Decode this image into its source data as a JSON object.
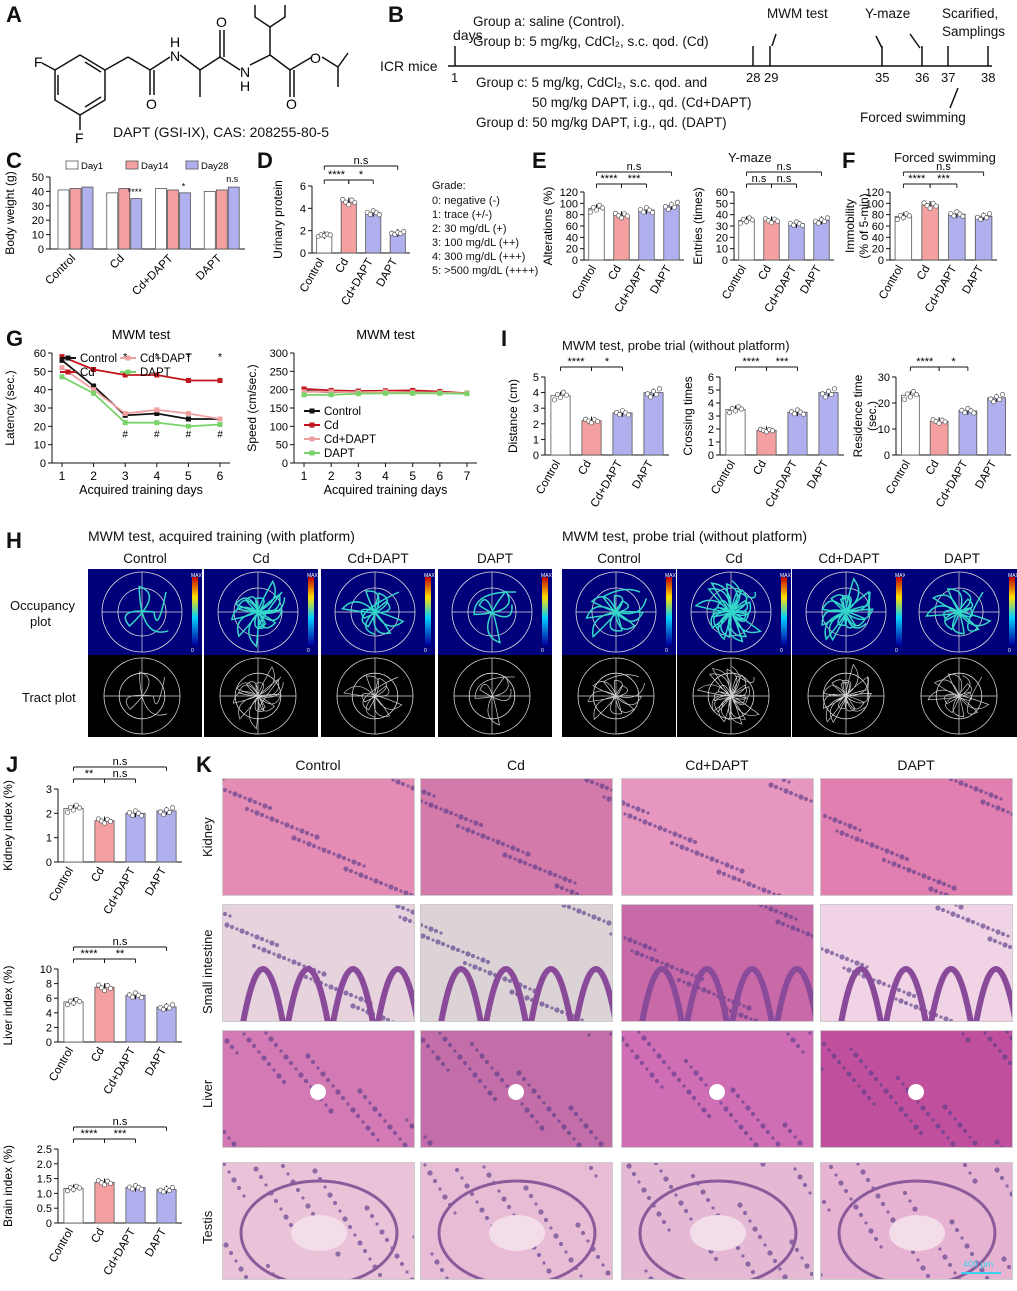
{
  "panels": {
    "A": {
      "letter": "A",
      "caption": "DAPT (GSI-IX), CAS: 208255-80-5",
      "atoms": {
        "F1": "F",
        "F2": "F",
        "NH1": "H",
        "N1": "N",
        "NH2": "H",
        "N2": "N",
        "O1": "O",
        "O2": "O",
        "O3": "O",
        "O4": "O"
      }
    },
    "B": {
      "letter": "B",
      "subject": "ICR mice",
      "days_label": "days",
      "groups": [
        "Group a: saline (Control).",
        "Group b: 5 mg/kg, CdCl₂, s.c. qod. (Cd)",
        "Group c: 5 mg/kg, CdCl₂, s.c. qod. and",
        "50 mg/kg DAPT, i.g., qd. (Cd+DAPT)",
        "Group d: 50 mg/kg DAPT, i.g., qd. (DAPT)"
      ],
      "day_ticks": [
        "1",
        "28",
        "29",
        "35",
        "36",
        "37",
        "38"
      ],
      "events": {
        "mwm": "MWM test",
        "ymaze": "Y-maze",
        "sac": "Scarified,",
        "samp": "Samplings",
        "swim": "Forced swimming"
      }
    },
    "C": {
      "letter": "C",
      "ylabel": "Body weight (g)",
      "legend": [
        "Day1",
        "Day14",
        "Day28"
      ],
      "yticks": [
        "0",
        "10",
        "20",
        "30",
        "40",
        "50"
      ],
      "categories": [
        "Control",
        "Cd",
        "Cd+DAPT",
        "DAPT"
      ],
      "sig": [
        "****",
        "*",
        "n.s"
      ]
    },
    "D": {
      "letter": "D",
      "ylabel": "Urinary protein",
      "yticks": [
        "0",
        "2",
        "4",
        "6"
      ],
      "categories": [
        "Control",
        "Cd",
        "Cd+DAPT",
        "DAPT"
      ],
      "sig": [
        "n.s",
        "****",
        "*"
      ],
      "grade_title": "Grade:",
      "grades": [
        "0: negative (-)",
        "1: trace (+/-)",
        "2: 30 mg/dL (+)",
        "3: 100 mg/dL (++)",
        "4: 300 mg/dL (+++)",
        "5: >500 mg/dL (++++)"
      ]
    },
    "E": {
      "letter": "E",
      "title": "Y-maze",
      "ylabel1": "Alterations (%)",
      "ylabel2": "Entries (times)",
      "yticks1": [
        "0",
        "20",
        "40",
        "60",
        "80",
        "100",
        "120"
      ],
      "yticks2": [
        "0",
        "10",
        "20",
        "30",
        "40",
        "50",
        "60"
      ],
      "categories": [
        "Control",
        "Cd",
        "Cd+DAPT",
        "DAPT"
      ],
      "sig1": [
        "n.s",
        "****",
        "***"
      ],
      "sig2": [
        "n.s",
        "n.s",
        "n.s"
      ]
    },
    "F": {
      "letter": "F",
      "title": "Forced swimming",
      "ylabel": "Immobility",
      "ylabel2": "(% of 5-min)",
      "yticks": [
        "0",
        "20",
        "40",
        "60",
        "80",
        "100",
        "120"
      ],
      "categories": [
        "Control",
        "Cd",
        "Cd+DAPT",
        "DAPT"
      ],
      "sig": [
        "n.s",
        "****",
        "***"
      ]
    },
    "G": {
      "letter": "G",
      "title1": "MWM test",
      "title2": "MWM test",
      "ylabel1": "Latency (sec.)",
      "ylabel2": "Speed (cm/sec.)",
      "xlabel": "Acquired training days",
      "legend": [
        "Control",
        "Cd",
        "Cd+DAPT",
        "DAPT"
      ],
      "yticks1": [
        "0",
        "10",
        "20",
        "30",
        "40",
        "50",
        "60"
      ],
      "yticks2": [
        "0",
        "50",
        "100",
        "150",
        "200",
        "250",
        "300"
      ],
      "xticks1": [
        "1",
        "2",
        "3",
        "4",
        "5",
        "6"
      ],
      "xticks2": [
        "1",
        "2",
        "3",
        "4",
        "5",
        "6",
        "7"
      ],
      "star": "*",
      "hash": "#"
    },
    "H": {
      "letter": "H",
      "title_left": "MWM test, acquired training (with platform)",
      "title_right": "MWM test, probe trial (without platform)",
      "groups": [
        "Control",
        "Cd",
        "Cd+DAPT",
        "DAPT"
      ],
      "row1": "Occupancy",
      "row1b": "plot",
      "row2": "Tract plot",
      "scale_max": "MAX",
      "scale_min": "0"
    },
    "I": {
      "letter": "I",
      "title": "MWM test, probe trial (without platform)",
      "ylabel1": "Distance (cm)",
      "ylabel2": "Crossing times",
      "ylabel3": "Residence time",
      "ylabel3b": "(sec.)",
      "yticks1": [
        "0",
        "1",
        "2",
        "3",
        "4",
        "5"
      ],
      "yticks2": [
        "0",
        "1",
        "2",
        "3",
        "4",
        "5",
        "6"
      ],
      "yticks3": [
        "0",
        "10",
        "20",
        "30"
      ],
      "categories": [
        "Control",
        "Cd",
        "Cd+DAPT",
        "DAPT"
      ],
      "sig1": [
        "****",
        "*"
      ],
      "sig2": [
        "****",
        "***"
      ],
      "sig3": [
        "****",
        "*"
      ]
    },
    "J": {
      "letter": "J",
      "ylabel1": "Kidney index (%)",
      "ylabel2": "Liver index (%)",
      "ylabel3": "Brain index (%)",
      "yticks1": [
        "0",
        "1",
        "2",
        "3"
      ],
      "yticks2": [
        "0",
        "2",
        "4",
        "6",
        "8",
        "10"
      ],
      "yticks3": [
        "0",
        "0.5",
        "1.0",
        "1.5",
        "2.0",
        "2.5"
      ],
      "categories": [
        "Control",
        "Cd",
        "Cd+DAPT",
        "DAPT"
      ],
      "sig1": [
        "n.s",
        "**",
        "n.s"
      ],
      "sig2": [
        "n.s",
        "****",
        "**"
      ],
      "sig3": [
        "n.s",
        "****",
        "***"
      ]
    },
    "K": {
      "letter": "K",
      "columns": [
        "Control",
        "Cd",
        "Cd+DAPT",
        "DAPT"
      ],
      "rows": [
        "Kidney",
        "Small intestine",
        "Liver",
        "Testis"
      ],
      "scale": "400 µm"
    }
  },
  "chart_data": [
    {
      "type": "bar",
      "title": "",
      "ylabel": "Body weight (g)",
      "categories": [
        "Control",
        "Cd",
        "Cd+DAPT",
        "DAPT"
      ],
      "ylim": [
        0,
        50
      ],
      "series": [
        {
          "name": "Day1",
          "values": [
            41,
            39,
            42,
            40
          ]
        },
        {
          "name": "Day14",
          "values": [
            42,
            42,
            41,
            41
          ]
        },
        {
          "name": "Day28",
          "values": [
            43,
            35,
            39,
            43
          ]
        }
      ],
      "colors": [
        "#ffffff",
        "#f4a0a0",
        "#b0b0ee"
      ]
    },
    {
      "type": "bar",
      "ylabel": "Urinary protein",
      "categories": [
        "Control",
        "Cd",
        "Cd+DAPT",
        "DAPT"
      ],
      "values": [
        1.6,
        4.6,
        3.6,
        1.8
      ],
      "ylim": [
        0,
        6
      ]
    },
    {
      "type": "bar",
      "title": "Y-maze",
      "ylabel": "Alterations (%)",
      "categories": [
        "Control",
        "Cd",
        "Cd+DAPT",
        "DAPT"
      ],
      "values": [
        91,
        79,
        88,
        96
      ],
      "ylim": [
        0,
        120
      ]
    },
    {
      "type": "bar",
      "title": "Y-maze",
      "ylabel": "Entries (times)",
      "categories": [
        "Control",
        "Cd",
        "Cd+DAPT",
        "DAPT"
      ],
      "values": [
        35,
        35,
        32,
        35
      ],
      "ylim": [
        0,
        60
      ]
    },
    {
      "type": "bar",
      "title": "Forced swimming",
      "ylabel": "Immobility (% of 5-min)",
      "categories": [
        "Control",
        "Cd",
        "Cd+DAPT",
        "DAPT"
      ],
      "values": [
        77,
        97,
        81,
        77
      ],
      "ylim": [
        0,
        120
      ]
    },
    {
      "type": "line",
      "title": "MWM test",
      "ylabel": "Latency (sec.)",
      "xlabel": "Acquired training days",
      "x": [
        1,
        2,
        3,
        4,
        5,
        6
      ],
      "ylim": [
        0,
        60
      ],
      "series": [
        {
          "name": "Control",
          "values": [
            56,
            42,
            26,
            27,
            24,
            24
          ]
        },
        {
          "name": "Cd",
          "values": [
            58,
            51,
            48,
            48,
            45,
            45
          ]
        },
        {
          "name": "Cd+DAPT",
          "values": [
            52,
            40,
            27,
            29,
            27,
            24
          ]
        },
        {
          "name": "DAPT",
          "values": [
            47,
            38,
            22,
            22,
            20,
            21
          ]
        }
      ]
    },
    {
      "type": "line",
      "title": "MWM test",
      "ylabel": "Speed (cm/sec.)",
      "xlabel": "Acquired training days",
      "x": [
        1,
        2,
        3,
        4,
        5,
        6,
        7
      ],
      "ylim": [
        0,
        300
      ],
      "series": [
        {
          "name": "Control",
          "values": [
            196,
            193,
            196,
            196,
            195,
            193,
            190
          ]
        },
        {
          "name": "Cd",
          "values": [
            202,
            198,
            196,
            197,
            198,
            195,
            190
          ]
        },
        {
          "name": "Cd+DAPT",
          "values": [
            194,
            194,
            193,
            194,
            193,
            192,
            190
          ]
        },
        {
          "name": "DAPT",
          "values": [
            186,
            186,
            189,
            190,
            190,
            190,
            189
          ]
        }
      ]
    },
    {
      "type": "bar",
      "title": "MWM test, probe trial (without platform)",
      "ylabel": "Distance (cm)",
      "categories": [
        "Control",
        "Cd",
        "Cd+DAPT",
        "DAPT"
      ],
      "values": [
        3.8,
        2.2,
        2.7,
        4.0
      ],
      "ylim": [
        0,
        5
      ]
    },
    {
      "type": "bar",
      "ylabel": "Crossing times",
      "categories": [
        "Control",
        "Cd",
        "Cd+DAPT",
        "DAPT"
      ],
      "values": [
        3.5,
        1.9,
        3.3,
        4.8
      ],
      "ylim": [
        0,
        6
      ]
    },
    {
      "type": "bar",
      "ylabel": "Residence time (sec.)",
      "categories": [
        "Control",
        "Cd",
        "Cd+DAPT",
        "DAPT"
      ],
      "values": [
        23,
        13,
        17,
        22
      ],
      "ylim": [
        0,
        30
      ]
    },
    {
      "type": "bar",
      "ylabel": "Kidney index (%)",
      "categories": [
        "Control",
        "Cd",
        "Cd+DAPT",
        "DAPT"
      ],
      "values": [
        2.2,
        1.7,
        2.0,
        2.1
      ],
      "ylim": [
        0,
        3
      ]
    },
    {
      "type": "bar",
      "ylabel": "Liver index (%)",
      "categories": [
        "Control",
        "Cd",
        "Cd+DAPT",
        "DAPT"
      ],
      "values": [
        5.5,
        7.5,
        6.4,
        4.8
      ],
      "ylim": [
        0,
        10
      ]
    },
    {
      "type": "bar",
      "ylabel": "Brain index (%)",
      "categories": [
        "Control",
        "Cd",
        "Cd+DAPT",
        "DAPT"
      ],
      "values": [
        1.17,
        1.37,
        1.2,
        1.13
      ],
      "ylim": [
        0,
        2.5
      ]
    }
  ],
  "colors": {
    "control": "#ffffff",
    "cd": "#f4a0a0",
    "cddapt": "#b0b0ee",
    "dapt": "#b0b0ee",
    "line_control": "#111111",
    "line_cd": "#c0151c",
    "line_cddapt": "#f0a0a0",
    "line_dapt": "#7ad36a"
  }
}
